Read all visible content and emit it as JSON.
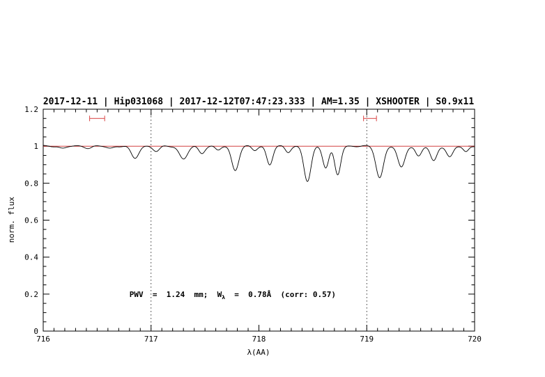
{
  "page": {
    "background": "#ffffff"
  },
  "chart_data": {
    "type": "line",
    "title": "2017-12-11 | Hip031068 | 2017-12-12T07:47:23.333 | AM=1.35 | XSHOOTER | S0.9x11",
    "title_color": "#0000cc",
    "xlabel": "λ(AA)",
    "ylabel": "norm. flux",
    "xlim": [
      716,
      720
    ],
    "ylim": [
      0,
      1.2
    ],
    "x_tick_values": [
      716,
      717,
      718,
      719,
      720
    ],
    "x_tick_labels": [
      "716",
      "717",
      "718",
      "719",
      "720"
    ],
    "y_tick_values": [
      0,
      0.2,
      0.4,
      0.6,
      0.8,
      1,
      1.2
    ],
    "y_tick_labels": [
      "0",
      "0.2",
      "0.4",
      "0.6",
      "0.8",
      "1",
      "1.2"
    ],
    "x_minor_step": 0.1,
    "y_minor_step": 0.05,
    "grid": "off",
    "legend": "none",
    "dotted_vlines": [
      717,
      719
    ],
    "continuum": {
      "y": 1.0,
      "color": "#cc2222"
    },
    "marker_color": "#dd5555",
    "range_markers": [
      {
        "x_min": 716.43,
        "x_max": 716.57,
        "y": 1.15
      },
      {
        "x_min": 718.97,
        "x_max": 719.09,
        "y": 1.15
      }
    ],
    "annotation": {
      "x": 716.5,
      "y": 0.2,
      "color": "#0000cc",
      "text": "PWV = 1.24 mm; W_λ = 0.78Å (corr: 0.57)",
      "parts": {
        "prefix": "PWV  =  1.24  mm;  W",
        "sub": "λ",
        "suffix": "  =  0.78Å  (corr: 0.57)"
      }
    },
    "series": [
      {
        "name": "spectrum",
        "color": "#000000",
        "continuum_level": 1.0,
        "absorption_lines": [
          {
            "center": 716.18,
            "depth": 0.012,
            "sigma": 0.03
          },
          {
            "center": 716.42,
            "depth": 0.01,
            "sigma": 0.03
          },
          {
            "center": 716.62,
            "depth": 0.012,
            "sigma": 0.03
          },
          {
            "center": 716.85,
            "depth": 0.065,
            "sigma": 0.035
          },
          {
            "center": 717.05,
            "depth": 0.028,
            "sigma": 0.03
          },
          {
            "center": 717.3,
            "depth": 0.07,
            "sigma": 0.038
          },
          {
            "center": 717.47,
            "depth": 0.038,
            "sigma": 0.028
          },
          {
            "center": 717.62,
            "depth": 0.022,
            "sigma": 0.025
          },
          {
            "center": 717.78,
            "depth": 0.13,
            "sigma": 0.033
          },
          {
            "center": 717.96,
            "depth": 0.022,
            "sigma": 0.025
          },
          {
            "center": 718.1,
            "depth": 0.1,
            "sigma": 0.028
          },
          {
            "center": 718.27,
            "depth": 0.032,
            "sigma": 0.025
          },
          {
            "center": 718.45,
            "depth": 0.19,
            "sigma": 0.033
          },
          {
            "center": 718.62,
            "depth": 0.115,
            "sigma": 0.028
          },
          {
            "center": 718.73,
            "depth": 0.155,
            "sigma": 0.028
          },
          {
            "center": 719.12,
            "depth": 0.17,
            "sigma": 0.035
          },
          {
            "center": 719.32,
            "depth": 0.115,
            "sigma": 0.033
          },
          {
            "center": 719.48,
            "depth": 0.055,
            "sigma": 0.028
          },
          {
            "center": 719.62,
            "depth": 0.08,
            "sigma": 0.03
          },
          {
            "center": 719.77,
            "depth": 0.06,
            "sigma": 0.03
          },
          {
            "center": 719.92,
            "depth": 0.03,
            "sigma": 0.025
          }
        ]
      }
    ]
  }
}
